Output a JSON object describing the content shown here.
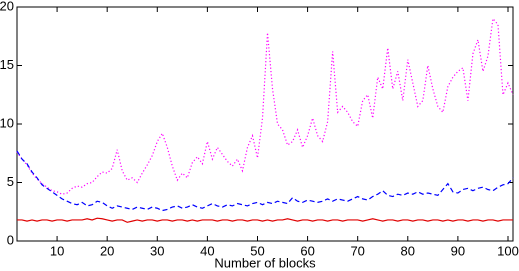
{
  "chart_data": {
    "type": "line",
    "xlabel": "Number of blocks",
    "xlim": [
      2,
      101
    ],
    "ylim": [
      0,
      20
    ],
    "xticks": [
      10,
      20,
      30,
      40,
      50,
      60,
      70,
      80,
      90,
      100
    ],
    "yticks": [
      0,
      5,
      10,
      15,
      20
    ],
    "x": [
      2,
      3,
      4,
      5,
      6,
      7,
      8,
      9,
      10,
      11,
      12,
      13,
      14,
      15,
      16,
      17,
      18,
      19,
      20,
      21,
      22,
      23,
      24,
      25,
      26,
      27,
      28,
      29,
      30,
      31,
      32,
      33,
      34,
      35,
      36,
      37,
      38,
      39,
      40,
      41,
      42,
      43,
      44,
      45,
      46,
      47,
      48,
      49,
      50,
      51,
      52,
      53,
      54,
      55,
      56,
      57,
      58,
      59,
      60,
      61,
      62,
      63,
      64,
      65,
      66,
      67,
      68,
      69,
      70,
      71,
      72,
      73,
      74,
      75,
      76,
      77,
      78,
      79,
      80,
      81,
      82,
      83,
      84,
      85,
      86,
      87,
      88,
      89,
      90,
      91,
      92,
      93,
      94,
      95,
      96,
      97,
      98,
      99,
      100,
      101
    ],
    "series": [
      {
        "color": "#ff00ff",
        "linestyle": "dotted",
        "values": [
          7.6,
          7.0,
          6.5,
          5.8,
          5.3,
          4.9,
          4.6,
          4.3,
          4.2,
          4.0,
          4.1,
          4.5,
          4.7,
          4.6,
          4.9,
          5.0,
          5.5,
          5.9,
          5.8,
          6.2,
          7.8,
          6.0,
          5.2,
          5.4,
          5.0,
          5.8,
          6.5,
          7.3,
          8.5,
          9.2,
          8.0,
          6.4,
          5.2,
          5.8,
          5.4,
          6.7,
          7.2,
          6.6,
          8.5,
          7.0,
          8.0,
          7.4,
          6.8,
          6.4,
          7.0,
          6.0,
          8.0,
          9.0,
          7.1,
          10.5,
          17.8,
          13.0,
          10.0,
          9.5,
          8.2,
          8.5,
          9.5,
          8.0,
          9.0,
          10.5,
          9.0,
          8.5,
          10.2,
          16.2,
          11.0,
          11.5,
          11.0,
          10.2,
          9.8,
          12.0,
          12.5,
          10.5,
          14.0,
          13.0,
          16.5,
          13.0,
          14.5,
          12.0,
          15.5,
          13.5,
          11.5,
          12.0,
          15.0,
          13.0,
          11.5,
          11.0,
          13.2,
          14.0,
          14.5,
          14.8,
          12.0,
          16.0,
          17.2,
          14.5,
          15.8,
          19.0,
          18.5,
          12.5,
          13.5,
          12.5
        ]
      },
      {
        "color": "#0000ff",
        "linestyle": "dashed",
        "values": [
          7.7,
          7.0,
          6.6,
          5.9,
          5.4,
          4.8,
          4.5,
          4.2,
          3.9,
          3.6,
          3.4,
          3.2,
          3.1,
          3.3,
          3.0,
          3.1,
          3.4,
          3.3,
          3.0,
          2.8,
          3.0,
          2.9,
          2.8,
          2.7,
          2.9,
          2.8,
          2.7,
          2.9,
          2.8,
          2.6,
          2.7,
          2.9,
          3.0,
          2.8,
          2.9,
          3.1,
          2.9,
          2.8,
          3.0,
          3.2,
          3.0,
          2.9,
          3.1,
          3.0,
          3.2,
          3.1,
          3.0,
          3.2,
          3.3,
          3.1,
          3.3,
          3.2,
          3.4,
          3.3,
          3.2,
          3.7,
          3.4,
          3.3,
          3.5,
          3.4,
          3.3,
          3.4,
          3.6,
          3.4,
          3.6,
          3.5,
          3.4,
          3.6,
          3.8,
          3.6,
          3.5,
          3.8,
          4.0,
          4.3,
          3.9,
          3.8,
          4.0,
          3.9,
          4.1,
          4.0,
          4.2,
          4.0,
          4.1,
          4.0,
          3.9,
          4.4,
          4.9,
          4.2,
          4.1,
          4.4,
          4.5,
          4.3,
          4.5,
          4.6,
          4.4,
          4.3,
          4.6,
          4.8,
          4.9,
          5.4
        ]
      },
      {
        "color": "#e00000",
        "linestyle": "solid",
        "values": [
          1.8,
          1.8,
          1.7,
          1.8,
          1.7,
          1.8,
          1.8,
          1.7,
          1.8,
          1.8,
          1.7,
          1.8,
          1.8,
          1.8,
          1.9,
          1.8,
          1.95,
          1.9,
          1.8,
          1.7,
          1.8,
          1.8,
          1.6,
          1.7,
          1.8,
          1.7,
          1.8,
          1.8,
          1.7,
          1.8,
          1.8,
          1.7,
          1.8,
          1.8,
          1.7,
          1.8,
          1.7,
          1.8,
          1.8,
          1.8,
          1.7,
          1.8,
          1.8,
          1.7,
          1.8,
          1.8,
          1.7,
          1.8,
          1.8,
          1.7,
          1.8,
          1.7,
          1.8,
          1.8,
          1.9,
          1.8,
          1.7,
          1.8,
          1.8,
          1.7,
          1.8,
          1.8,
          1.7,
          1.8,
          1.8,
          1.7,
          1.8,
          1.8,
          1.8,
          1.7,
          1.8,
          1.9,
          1.8,
          1.7,
          1.8,
          1.8,
          1.7,
          1.8,
          1.8,
          1.7,
          1.8,
          1.8,
          1.7,
          1.8,
          1.8,
          1.7,
          1.8,
          1.7,
          1.8,
          1.8,
          1.7,
          1.8,
          1.8,
          1.7,
          1.8,
          1.8,
          1.7,
          1.8,
          1.8,
          1.8
        ]
      }
    ]
  }
}
